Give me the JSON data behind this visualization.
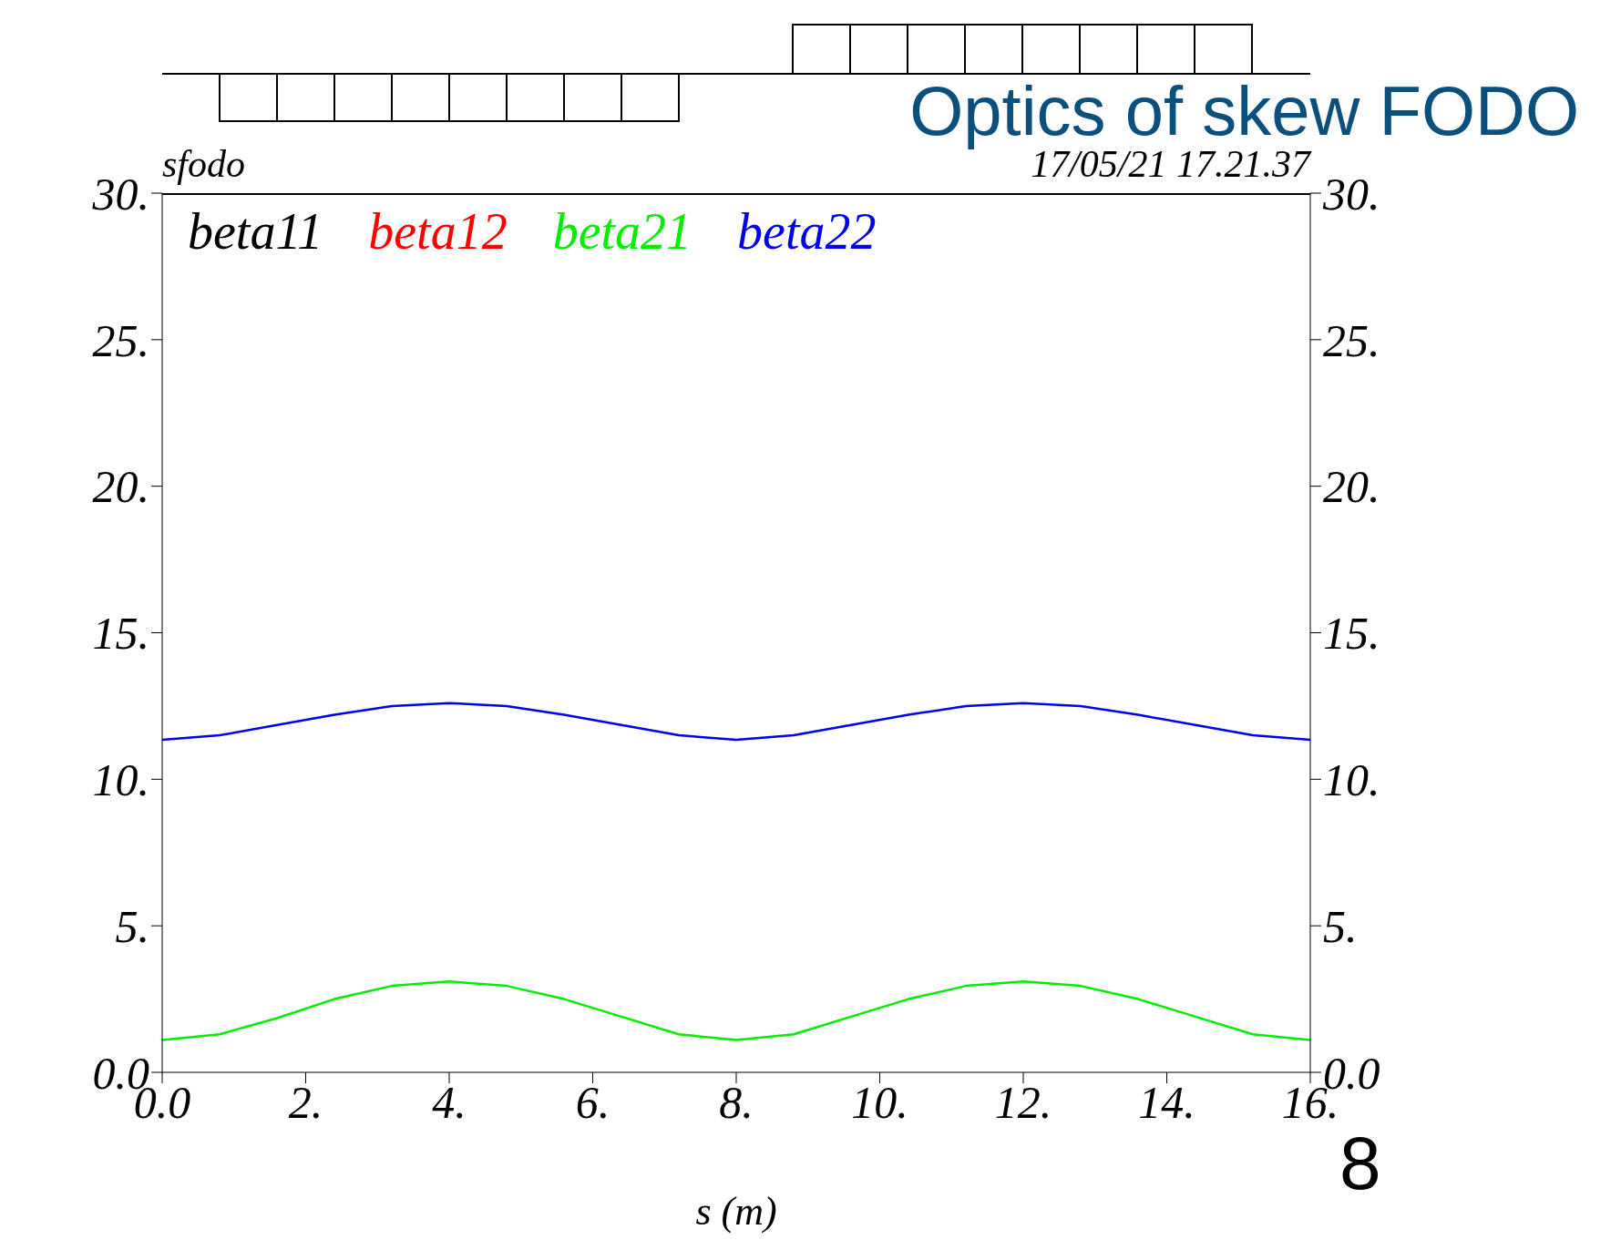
{
  "chart_data": {
    "type": "line",
    "title": "Optics of skew FODO",
    "subtitle": "sfodo",
    "xlabel": "s (m)",
    "annotations": [
      "17/05/21 17.21.37",
      "8"
    ],
    "x": [
      0,
      0.8,
      1.6,
      2.4,
      3.2,
      4,
      4.8,
      5.6,
      6.4,
      7.2,
      8,
      8.8,
      9.6,
      10.4,
      11.2,
      12,
      12.8,
      13.6,
      14.4,
      15.2,
      16
    ],
    "series": [
      {
        "name": "beta11",
        "color": "#000000",
        "values": [
          null,
          null,
          null,
          null,
          null,
          null,
          null,
          null,
          null,
          null,
          null,
          null,
          null,
          null,
          null,
          null,
          null,
          null,
          null,
          null,
          null
        ]
      },
      {
        "name": "beta12",
        "color": "#ff0000",
        "values": [
          null,
          null,
          null,
          null,
          null,
          null,
          null,
          null,
          null,
          null,
          null,
          null,
          null,
          null,
          null,
          null,
          null,
          null,
          null,
          null,
          null
        ]
      },
      {
        "name": "beta21",
        "color": "#00ee00",
        "values": [
          1.1,
          1.3,
          1.85,
          2.5,
          2.95,
          3.1,
          2.95,
          2.5,
          1.9,
          1.3,
          1.1,
          1.3,
          1.9,
          2.5,
          2.95,
          3.1,
          2.95,
          2.5,
          1.9,
          1.3,
          1.1
        ]
      },
      {
        "name": "beta22",
        "color": "#0000ee",
        "values": [
          11.35,
          11.5,
          11.85,
          12.2,
          12.5,
          12.6,
          12.5,
          12.2,
          11.85,
          11.5,
          11.35,
          11.5,
          11.85,
          12.2,
          12.5,
          12.6,
          12.5,
          12.2,
          11.85,
          11.5,
          11.35
        ]
      }
    ],
    "xlim": [
      0,
      16
    ],
    "xticks": [
      {
        "value": 0,
        "label": "0.0"
      },
      {
        "value": 2,
        "label": "2."
      },
      {
        "value": 4,
        "label": "4."
      },
      {
        "value": 6,
        "label": "6."
      },
      {
        "value": 8,
        "label": "8."
      },
      {
        "value": 10,
        "label": "10."
      },
      {
        "value": 12,
        "label": "12."
      },
      {
        "value": 14,
        "label": "14."
      },
      {
        "value": 16,
        "label": "16."
      }
    ],
    "ylim": [
      0,
      30
    ],
    "yticks": [
      {
        "value": 0,
        "label": "0.0"
      },
      {
        "value": 5,
        "label": "5."
      },
      {
        "value": 10,
        "label": "10."
      },
      {
        "value": 15,
        "label": "15."
      },
      {
        "value": 20,
        "label": "20."
      },
      {
        "value": 25,
        "label": "25."
      },
      {
        "value": 30,
        "label": "30."
      }
    ],
    "y2lim": [
      0,
      30
    ],
    "y2ticks": [
      {
        "value": 0,
        "label": "0.0"
      },
      {
        "value": 5,
        "label": "5."
      },
      {
        "value": 10,
        "label": "10."
      },
      {
        "value": 15,
        "label": "15."
      },
      {
        "value": 20,
        "label": "20."
      },
      {
        "value": 25,
        "label": "25."
      },
      {
        "value": 30,
        "label": "30."
      }
    ],
    "legend": "top left"
  }
}
